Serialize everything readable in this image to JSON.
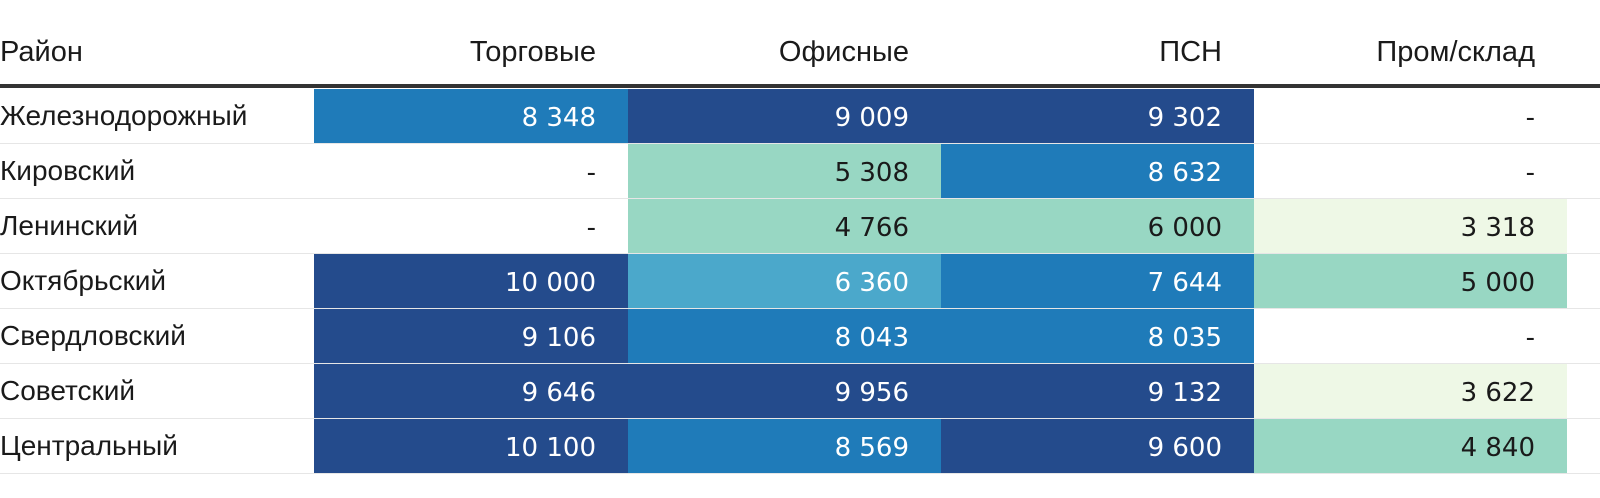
{
  "chart_data": {
    "type": "table",
    "columns": [
      "Район",
      "Торговые",
      "Офисные",
      "ПСН",
      "Пром/склад"
    ],
    "rows": [
      {
        "name": "Железнодорожный",
        "values": [
          "8 348",
          "9 009",
          "9 302",
          "-"
        ],
        "colors": [
          "#1f7bb9",
          "#244b8c",
          "#244b8c",
          "#ffffff"
        ]
      },
      {
        "name": "Кировский",
        "values": [
          "-",
          "5 308",
          "8 632",
          "-"
        ],
        "colors": [
          "#ffffff",
          "#98d7c3",
          "#1f7bb9",
          "#ffffff"
        ]
      },
      {
        "name": "Ленинский",
        "values": [
          "-",
          "4 766",
          "6 000",
          "3 318"
        ],
        "colors": [
          "#ffffff",
          "#98d7c3",
          "#98d7c3",
          "#eef8e6"
        ]
      },
      {
        "name": "Октябрьский",
        "values": [
          "10 000",
          "6 360",
          "7 644",
          "5 000"
        ],
        "colors": [
          "#244b8c",
          "#4ba8cb",
          "#1f7bb9",
          "#98d7c3"
        ]
      },
      {
        "name": "Свердловский",
        "values": [
          "9 106",
          "8 043",
          "8 035",
          "-"
        ],
        "colors": [
          "#244b8c",
          "#1f7bb9",
          "#1f7bb9",
          "#ffffff"
        ]
      },
      {
        "name": "Советский",
        "values": [
          "9 646",
          "9 956",
          "9 132",
          "3 622"
        ],
        "colors": [
          "#244b8c",
          "#244b8c",
          "#244b8c",
          "#eef8e6"
        ]
      },
      {
        "name": "Центральный",
        "values": [
          "10 100",
          "8 569",
          "9 600",
          "4 840"
        ],
        "colors": [
          "#244b8c",
          "#1f7bb9",
          "#244b8c",
          "#98d7c3"
        ]
      }
    ]
  }
}
